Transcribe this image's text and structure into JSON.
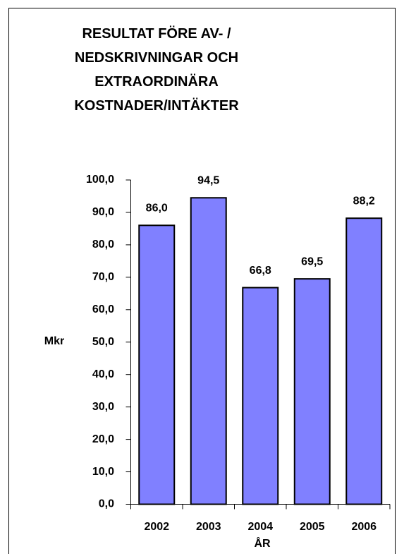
{
  "chart_data": {
    "type": "bar",
    "title": "RESULTAT FÖRE AV- / NEDSKRIVNINGAR OCH EXTRAORDINÄRA KOSTNADER/INTÄKTER",
    "x_label": "ÅR",
    "y_label": "Mkr",
    "categories": [
      "2002",
      "2003",
      "2004",
      "2005",
      "2006"
    ],
    "values": [
      86.0,
      94.5,
      66.8,
      69.5,
      88.2
    ],
    "value_labels": [
      "86,0",
      "94,5",
      "66,8",
      "69,5",
      "88,2"
    ],
    "color": "#8080ff",
    "ylim": [
      0,
      100
    ],
    "yticks": [
      {
        "value": 0,
        "label": "0,0"
      },
      {
        "value": 10,
        "label": "10,0"
      },
      {
        "value": 20,
        "label": "20,0"
      },
      {
        "value": 30,
        "label": "30,0"
      },
      {
        "value": 40,
        "label": "40,0"
      },
      {
        "value": 50,
        "label": "50,0"
      },
      {
        "value": 60,
        "label": "60,0"
      },
      {
        "value": 70,
        "label": "70,0"
      },
      {
        "value": 80,
        "label": "80,0"
      },
      {
        "value": 90,
        "label": "90,0"
      },
      {
        "value": 100,
        "label": "100,0"
      }
    ],
    "grid": false
  }
}
